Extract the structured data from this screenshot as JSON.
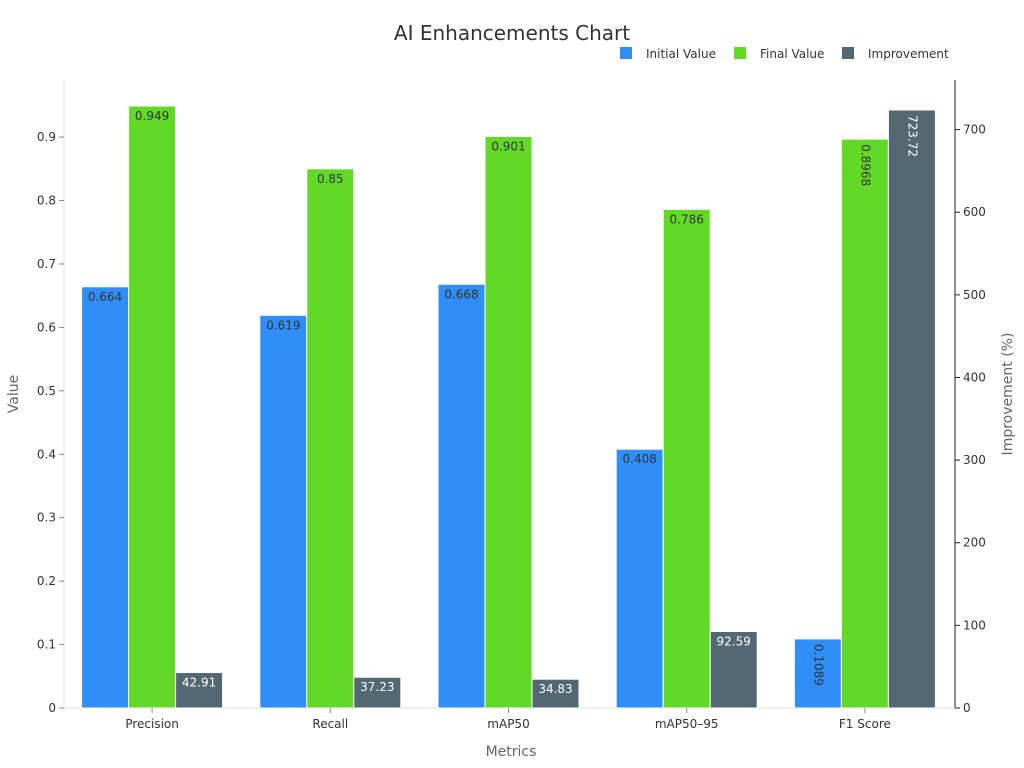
{
  "chart_data": {
    "type": "bar",
    "title": "AI Enhancements Chart",
    "xlabel": "Metrics",
    "ylabel": "Value",
    "y2label": "Improvement (%)",
    "categories": [
      "Precision",
      "Recall",
      "mAP50",
      "mAP50–95",
      "F1 Score"
    ],
    "ylim": [
      0,
      0.99
    ],
    "y2lim": [
      0,
      760
    ],
    "yticks": [
      0,
      0.1,
      0.2,
      0.3,
      0.4,
      0.5,
      0.6,
      0.7,
      0.8,
      0.9
    ],
    "ytick_labels": [
      "0",
      "0.1",
      "0.2",
      "0.3",
      "0.4",
      "0.5",
      "0.6",
      "0.7",
      "0.8",
      "0.9"
    ],
    "y2ticks": [
      0,
      100,
      200,
      300,
      400,
      500,
      600,
      700
    ],
    "y2tick_labels": [
      "0",
      "100",
      "200",
      "300",
      "400",
      "500",
      "600",
      "700"
    ],
    "legend_position": "top-right",
    "series": [
      {
        "name": "Initial Value",
        "axis": "left",
        "color": "#2f8ff7",
        "values": [
          0.664,
          0.619,
          0.668,
          0.408,
          0.1089
        ],
        "labels": [
          "0.664",
          "0.619",
          "0.668",
          "0.408",
          "0.1089"
        ]
      },
      {
        "name": "Final Value",
        "axis": "left",
        "color": "#62d927",
        "values": [
          0.949,
          0.85,
          0.901,
          0.786,
          0.8968
        ],
        "labels": [
          "0.949",
          "0.85",
          "0.901",
          "0.786",
          "0.8968"
        ]
      },
      {
        "name": "Improvement",
        "axis": "right",
        "color": "#536872",
        "values": [
          42.91,
          37.23,
          34.83,
          92.59,
          723.72
        ],
        "labels": [
          "42.91",
          "37.23",
          "34.83",
          "92.59",
          "723.72"
        ]
      }
    ]
  }
}
